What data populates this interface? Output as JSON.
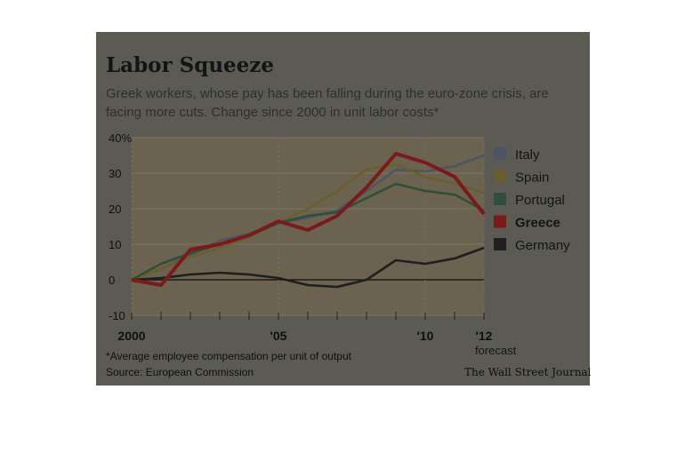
{
  "chart": {
    "title": "Labor Squeeze",
    "subtitle": "Greek workers, whose pay has been falling during the euro-zone crisis, are facing more cuts. Change since 2000 in unit labor costs*",
    "footnote": "*Average employee compensation per unit of output",
    "source": "Source: European Commission",
    "credit": "The Wall Street Journal",
    "forecast_label": "forecast"
  },
  "colors": {
    "background": "#5b5a53",
    "plot_background": "#6b6250",
    "Italy": "#4b5563",
    "Spain": "#6b5e2e",
    "Portugal": "#2f4f3a",
    "Greece": "#7a1a1a",
    "Germany": "#1f1f1f"
  },
  "chart_data": {
    "type": "line",
    "x": [
      2000,
      2001,
      2002,
      2003,
      2004,
      2005,
      2006,
      2007,
      2008,
      2009,
      2010,
      2011,
      2012
    ],
    "xticks": [
      "2000",
      "'05",
      "'10",
      "'12"
    ],
    "xtick_values": [
      2000,
      2005,
      2010,
      2012
    ],
    "ylim": [
      -10,
      40
    ],
    "yticks": [
      "40%",
      "30",
      "20",
      "10",
      "0",
      "-10"
    ],
    "ytick_values": [
      40,
      30,
      20,
      10,
      0,
      -10
    ],
    "series": [
      {
        "name": "Italy",
        "values": [
          0,
          3,
          7,
          11,
          13,
          16,
          17.5,
          19.5,
          25,
          31,
          30.5,
          32,
          35
        ]
      },
      {
        "name": "Spain",
        "values": [
          0,
          3,
          6.5,
          9,
          12,
          16,
          20,
          25,
          31,
          32.5,
          29,
          27,
          24.5
        ]
      },
      {
        "name": "Portugal",
        "values": [
          0,
          4.5,
          7.5,
          10,
          12.5,
          16,
          18,
          19,
          23,
          27,
          25,
          24,
          19.5
        ]
      },
      {
        "name": "Greece",
        "values": [
          0,
          -1.5,
          8.5,
          10,
          12.5,
          16.5,
          14,
          18,
          26,
          35.5,
          33,
          29,
          18.5
        ]
      },
      {
        "name": "Germany",
        "values": [
          0,
          0.5,
          1.5,
          2,
          1.5,
          0.5,
          -1.5,
          -2,
          0,
          5.5,
          4.5,
          6,
          9
        ]
      }
    ],
    "legend": [
      "Italy",
      "Spain",
      "Portugal",
      "Greece",
      "Germany"
    ],
    "legend_position": "right",
    "grid": true
  }
}
